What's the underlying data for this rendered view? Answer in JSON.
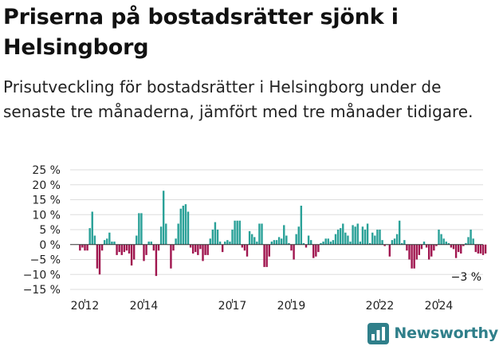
{
  "title": "Priserna på bostadsrätter sjönk i Helsingborg",
  "subtitle": "Prisutveckling för bostadsrätter i Helsingborg under de senaste tre månaderna, jämfört med tre månader tidigare.",
  "brand": {
    "name": "Newsworthy",
    "icon": "newsworthy-logo-icon",
    "color": "#2f7f8a"
  },
  "colors": {
    "positive": "#2aa198",
    "negative": "#a0164f",
    "grid": "#dddddd",
    "axis": "#333333"
  },
  "chart_data": {
    "type": "bar",
    "unit": "%",
    "x_start": 2011.5,
    "x_end": 2025.5,
    "ylim": [
      -15,
      25
    ],
    "yticks": [
      -15,
      -10,
      -5,
      0,
      5,
      10,
      15,
      20,
      25
    ],
    "ytick_labels": [
      "−15 %",
      "−10 %",
      "−5 %",
      "0 %",
      "5 %",
      "10 %",
      "15 %",
      "20 %",
      "25 %"
    ],
    "xticks": [
      2012,
      2014,
      2017,
      2019,
      2022,
      2024
    ],
    "xtick_labels": [
      "2012",
      "2014",
      "2017",
      "2019",
      "2022",
      "2024"
    ],
    "grid": true,
    "start_month": "2011-11",
    "values": [
      -2,
      -1,
      -2,
      -2,
      5.5,
      11,
      3,
      -8,
      -10,
      -2,
      1.5,
      2,
      4,
      1,
      1,
      -3.5,
      -2.5,
      -3.5,
      -2.5,
      -2,
      -3,
      -7,
      -5,
      3,
      10.5,
      10.5,
      -5.5,
      -3.5,
      1,
      1,
      -2,
      -10.5,
      -2,
      6,
      18,
      7,
      0,
      -8,
      -2,
      2,
      7,
      12,
      13,
      13.5,
      11,
      -1,
      -3,
      -2.5,
      -3.5,
      -1.5,
      -5.5,
      -3.5,
      -3.5,
      2,
      5,
      7.5,
      5,
      1,
      -2.5,
      1,
      1.5,
      1,
      5,
      8,
      8,
      8,
      -1,
      -2,
      -4,
      4.5,
      3.5,
      2.5,
      1,
      7,
      7,
      -7.5,
      -7.5,
      -4,
      1,
      1.5,
      1.5,
      2.5,
      2,
      6.5,
      3,
      0.5,
      -2,
      -5,
      3.5,
      6,
      13,
      0.5,
      -1,
      3,
      1.5,
      -4.5,
      -4,
      -2.5,
      0.5,
      1,
      2,
      2,
      1,
      1.5,
      3.5,
      5,
      5.5,
      7,
      4,
      3,
      1,
      6.5,
      6,
      7,
      1,
      6,
      5,
      7,
      0.5,
      4,
      3,
      5,
      5,
      1.5,
      -0.5,
      0,
      -4,
      1.5,
      2,
      3.5,
      8,
      0.5,
      1.5,
      -2,
      -5,
      -8,
      -8,
      -5,
      -3.5,
      -1.5,
      1,
      -1,
      -5,
      -4,
      -2,
      -0.5,
      5,
      3.5,
      2,
      1,
      0.5,
      -1,
      -1.5,
      -4.5,
      -2.5,
      -3,
      -0.5,
      0.5,
      2.5,
      5,
      2,
      -2.5,
      -3,
      -3,
      -3.5,
      -3
    ],
    "annotation": {
      "label": "−3 %",
      "value": -3
    }
  }
}
